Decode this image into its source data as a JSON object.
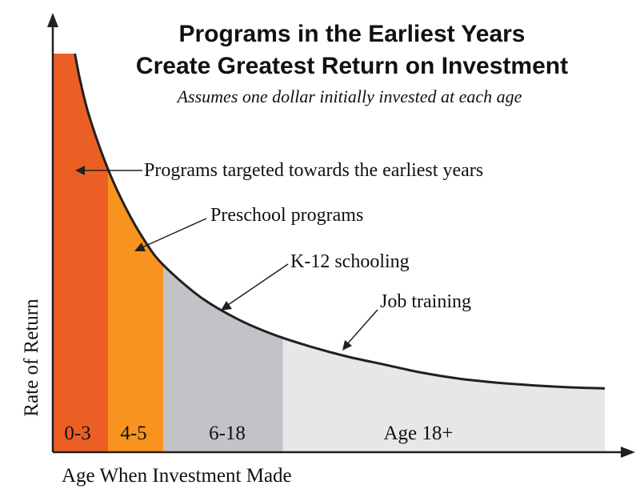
{
  "chart_data": {
    "type": "area",
    "title_line1": "Programs in the Earliest Years",
    "title_line2": "Create Greatest Return on Investment",
    "subtitle": "Assumes one dollar initially invested at each age",
    "xlabel": "Age When Investment Made",
    "ylabel": "Rate of  Return",
    "xlim": [
      0,
      30
    ],
    "ylim": [
      0,
      100
    ],
    "curve": [
      {
        "age": 1.2,
        "rate": 100
      },
      {
        "age": 1.5,
        "rate": 93
      },
      {
        "age": 2,
        "rate": 84
      },
      {
        "age": 3,
        "rate": 71
      },
      {
        "age": 4,
        "rate": 61
      },
      {
        "age": 5,
        "rate": 53
      },
      {
        "age": 6,
        "rate": 47
      },
      {
        "age": 8,
        "rate": 39
      },
      {
        "age": 10,
        "rate": 33.5
      },
      {
        "age": 12,
        "rate": 29.5
      },
      {
        "age": 14,
        "rate": 26.5
      },
      {
        "age": 16,
        "rate": 24
      },
      {
        "age": 18,
        "rate": 22
      },
      {
        "age": 20,
        "rate": 20
      },
      {
        "age": 22,
        "rate": 18.5
      },
      {
        "age": 24,
        "rate": 17.5
      },
      {
        "age": 26,
        "rate": 16.8
      },
      {
        "age": 28,
        "rate": 16.3
      },
      {
        "age": 30,
        "rate": 16
      }
    ],
    "segments": [
      {
        "label": "0-3",
        "start": 0,
        "end": 3,
        "color": "#ec5f24",
        "program": "Programs targeted towards the earliest years"
      },
      {
        "label": "4-5",
        "start": 3,
        "end": 6,
        "color": "#f7931e",
        "program": "Preschool programs"
      },
      {
        "label": "6-18",
        "start": 6,
        "end": 12.5,
        "color": "#c2c3c6",
        "program": "K-12 schooling"
      },
      {
        "label": "Age 18+",
        "start": 12.5,
        "end": 30,
        "color": "#e6e7e8",
        "program": "Job training"
      }
    ]
  }
}
